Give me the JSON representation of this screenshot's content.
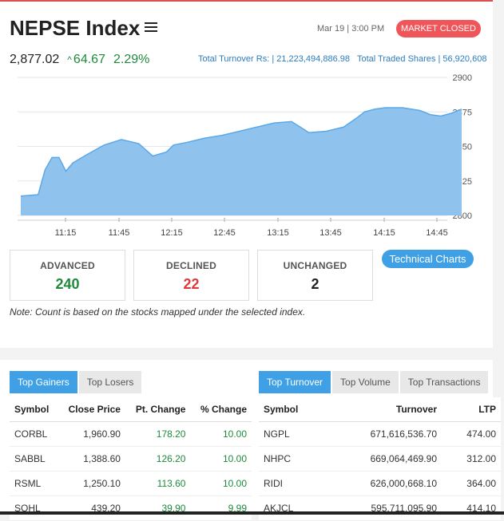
{
  "header": {
    "title": "NEPSE Index",
    "datetime": "Mar 19 | 3:00 PM",
    "status_badge": "MARKET CLOSED",
    "index_value": "2,877.02",
    "change": "64.67",
    "change_pct": "2.29%",
    "turnover": "Total Turnover Rs: | 21,223,494,886.98",
    "traded_shares": "Total Traded Shares | 56,920,608"
  },
  "chart_data": {
    "type": "area",
    "x_ticks": [
      "11:15",
      "11:45",
      "12:15",
      "12:45",
      "13:15",
      "13:45",
      "14:15",
      "14:45"
    ],
    "y_ticks": [
      "2900",
      "2875",
      "2850",
      "2825",
      "2800"
    ],
    "ylim": [
      2800,
      2900
    ],
    "x_minutes": [
      0,
      10,
      14,
      18,
      22,
      26,
      30,
      38,
      48,
      58,
      68,
      76,
      84,
      88,
      96,
      106,
      116,
      126,
      136,
      146,
      156,
      166,
      176,
      186,
      194,
      198,
      204,
      210,
      220,
      230,
      236,
      242,
      248,
      254
    ],
    "values": [
      2814,
      2815,
      2833,
      2842,
      2842,
      2832,
      2838,
      2844,
      2851,
      2855,
      2852,
      2843,
      2846,
      2851,
      2853,
      2856,
      2858,
      2861,
      2864,
      2867,
      2868,
      2860,
      2861,
      2864,
      2871,
      2875,
      2877,
      2878,
      2878,
      2876,
      2873,
      2872,
      2874,
      2877
    ],
    "color": "#8fc3ee",
    "line_color": "#5aa8e8"
  },
  "stats": {
    "advanced_label": "ADVANCED",
    "advanced": "240",
    "declined_label": "DECLINED",
    "declined": "22",
    "unchanged_label": "UNCHANGED",
    "unchanged": "2"
  },
  "technical_charts_label": "Technical Charts",
  "note": "Note: Count is based on the stocks mapped under the selected index.",
  "left_tabs": [
    "Top Gainers",
    "Top Losers"
  ],
  "right_tabs": [
    "Top Turnover",
    "Top Volume",
    "Top Transactions"
  ],
  "gainers": {
    "headers": [
      "Symbol",
      "Close Price",
      "Pt. Change",
      "% Change"
    ],
    "rows": [
      [
        "CORBL",
        "1,960.90",
        "178.20",
        "10.00"
      ],
      [
        "SABBL",
        "1,388.60",
        "126.20",
        "10.00"
      ],
      [
        "RSML",
        "1,250.10",
        "113.60",
        "10.00"
      ],
      [
        "SOHL",
        "439.20",
        "39.90",
        "9.99"
      ]
    ]
  },
  "turnover_table": {
    "headers": [
      "Symbol",
      "Turnover",
      "LTP"
    ],
    "rows": [
      [
        "NGPL",
        "671,616,536.70",
        "474.00"
      ],
      [
        "NHPC",
        "669,064,469.90",
        "312.00"
      ],
      [
        "RIDI",
        "626,000,668.10",
        "364.00"
      ],
      [
        "AKJCL",
        "595,711,095.90",
        "414.10"
      ]
    ]
  },
  "colors": {
    "accent": "#3fa0e6",
    "up": "#1e8a3c",
    "down": "#e03a3a",
    "badge": "#f0555a"
  }
}
